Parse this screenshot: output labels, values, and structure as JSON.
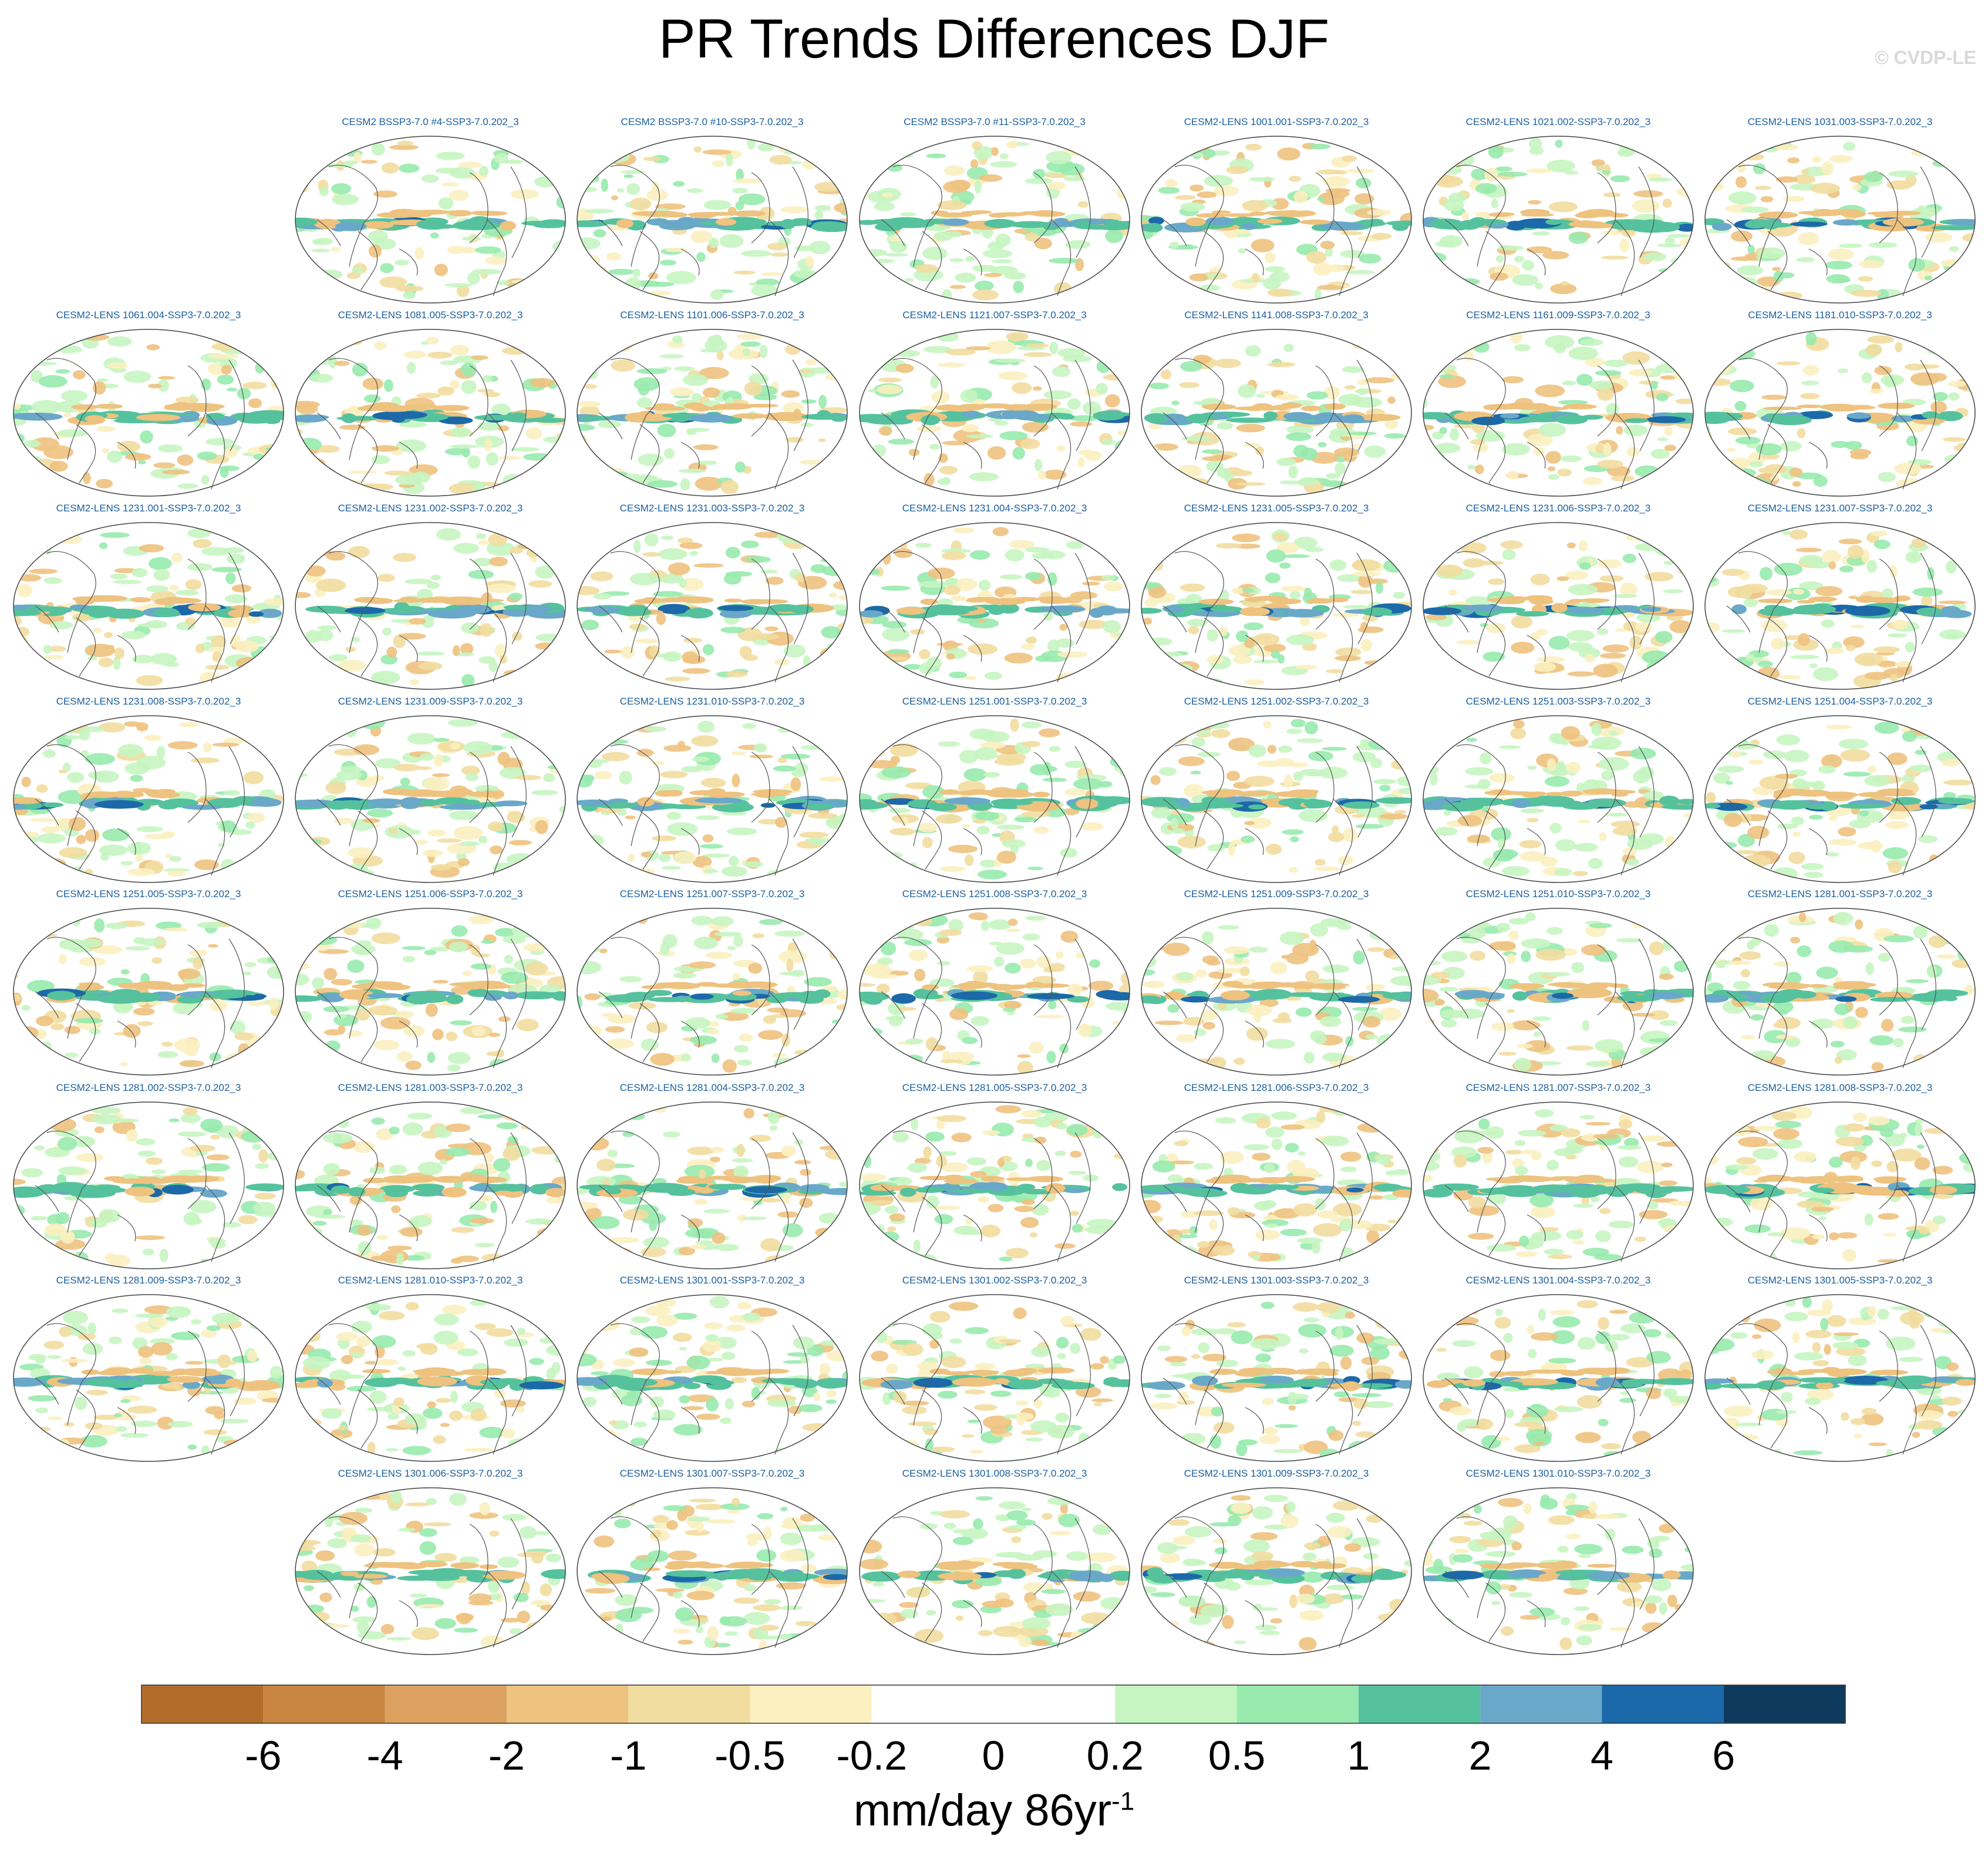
{
  "title": "PR Trends Differences DJF",
  "watermark": "© CVDP-LE",
  "chart_data": {
    "type": "heatmap",
    "title": "PR Trends Differences DJF",
    "projection": "Robinson global map, Pacific-centered",
    "variable": "precipitation trend difference",
    "units_prefix": "mm/day 86yr",
    "units_superscript": "-1",
    "panels": [
      "CESM2 BSSP3-7.0 #4-SSP3-7.0.202_3",
      "CESM2 BSSP3-7.0 #10-SSP3-7.0.202_3",
      "CESM2 BSSP3-7.0 #11-SSP3-7.0.202_3",
      "CESM2-LENS 1001.001-SSP3-7.0.202_3",
      "CESM2-LENS 1021.002-SSP3-7.0.202_3",
      "CESM2-LENS 1031.003-SSP3-7.0.202_3",
      "CESM2-LENS 1061.004-SSP3-7.0.202_3",
      "CESM2-LENS 1081.005-SSP3-7.0.202_3",
      "CESM2-LENS 1101.006-SSP3-7.0.202_3",
      "CESM2-LENS 1121.007-SSP3-7.0.202_3",
      "CESM2-LENS 1141.008-SSP3-7.0.202_3",
      "CESM2-LENS 1161.009-SSP3-7.0.202_3",
      "CESM2-LENS 1181.010-SSP3-7.0.202_3",
      "CESM2-LENS 1231.001-SSP3-7.0.202_3",
      "CESM2-LENS 1231.002-SSP3-7.0.202_3",
      "CESM2-LENS 1231.003-SSP3-7.0.202_3",
      "CESM2-LENS 1231.004-SSP3-7.0.202_3",
      "CESM2-LENS 1231.005-SSP3-7.0.202_3",
      "CESM2-LENS 1231.006-SSP3-7.0.202_3",
      "CESM2-LENS 1231.007-SSP3-7.0.202_3",
      "CESM2-LENS 1231.008-SSP3-7.0.202_3",
      "CESM2-LENS 1231.009-SSP3-7.0.202_3",
      "CESM2-LENS 1231.010-SSP3-7.0.202_3",
      "CESM2-LENS 1251.001-SSP3-7.0.202_3",
      "CESM2-LENS 1251.002-SSP3-7.0.202_3",
      "CESM2-LENS 1251.003-SSP3-7.0.202_3",
      "CESM2-LENS 1251.004-SSP3-7.0.202_3",
      "CESM2-LENS 1251.005-SSP3-7.0.202_3",
      "CESM2-LENS 1251.006-SSP3-7.0.202_3",
      "CESM2-LENS 1251.007-SSP3-7.0.202_3",
      "CESM2-LENS 1251.008-SSP3-7.0.202_3",
      "CESM2-LENS 1251.009-SSP3-7.0.202_3",
      "CESM2-LENS 1251.010-SSP3-7.0.202_3",
      "CESM2-LENS 1281.001-SSP3-7.0.202_3",
      "CESM2-LENS 1281.002-SSP3-7.0.202_3",
      "CESM2-LENS 1281.003-SSP3-7.0.202_3",
      "CESM2-LENS 1281.004-SSP3-7.0.202_3",
      "CESM2-LENS 1281.005-SSP3-7.0.202_3",
      "CESM2-LENS 1281.006-SSP3-7.0.202_3",
      "CESM2-LENS 1281.007-SSP3-7.0.202_3",
      "CESM2-LENS 1281.008-SSP3-7.0.202_3",
      "CESM2-LENS 1281.009-SSP3-7.0.202_3",
      "CESM2-LENS 1281.010-SSP3-7.0.202_3",
      "CESM2-LENS 1301.001-SSP3-7.0.202_3",
      "CESM2-LENS 1301.002-SSP3-7.0.202_3",
      "CESM2-LENS 1301.003-SSP3-7.0.202_3",
      "CESM2-LENS 1301.004-SSP3-7.0.202_3",
      "CESM2-LENS 1301.005-SSP3-7.0.202_3",
      "CESM2-LENS 1301.006-SSP3-7.0.202_3",
      "CESM2-LENS 1301.007-SSP3-7.0.202_3",
      "CESM2-LENS 1301.008-SSP3-7.0.202_3",
      "CESM2-LENS 1301.009-SSP3-7.0.202_3",
      "CESM2-LENS 1301.010-SSP3-7.0.202_3"
    ],
    "colorbar": {
      "levels": [
        "-6",
        "-4",
        "-2",
        "-1",
        "-0.5",
        "-0.2",
        "0",
        "0.2",
        "0.5",
        "1",
        "2",
        "4",
        "6"
      ],
      "colors": [
        "#b36d2b",
        "#c98640",
        "#dca15f",
        "#eec27f",
        "#f2dda0",
        "#fbf0c0",
        "#ffffff",
        "#ffffff",
        "#c7f5c1",
        "#98eaae",
        "#55c29d",
        "#6aa8c9",
        "#1b69a8",
        "#0e3a5e"
      ]
    }
  }
}
